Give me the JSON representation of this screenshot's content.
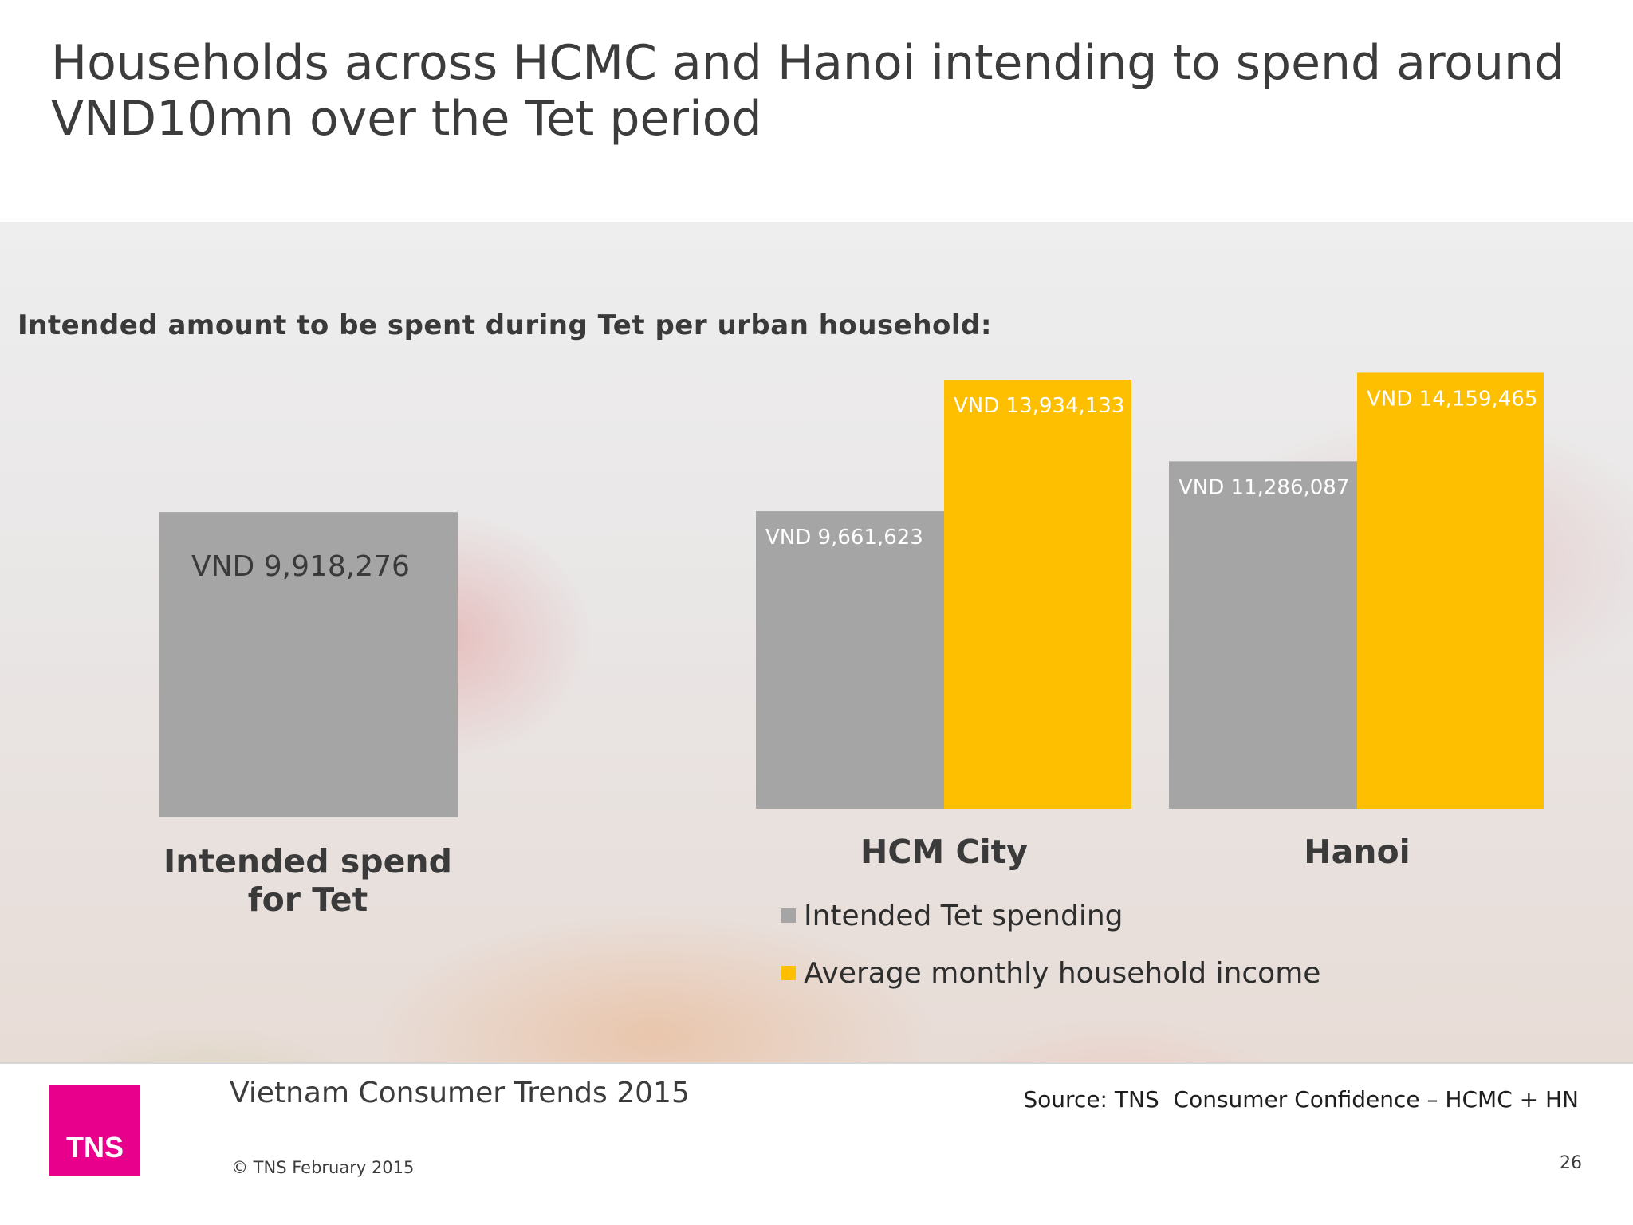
{
  "slide": {
    "title_line1": "Households across HCMC and Hanoi intending to spend around",
    "title_line2": "VND10mn over the Tet period",
    "subtitle": "Intended amount to be spent during Tet per urban household:"
  },
  "legend": {
    "items": [
      {
        "label": "Intended Tet spending",
        "color": "#a6a5a5"
      },
      {
        "label": "Average monthly household income",
        "color": "#fdbf00"
      }
    ]
  },
  "chart_data": {
    "type": "bar",
    "title": "Intended amount to be spent during Tet per urban household:",
    "colors": {
      "spend": "#a6a5a5",
      "income": "#fdbf00"
    },
    "groups": [
      {
        "category": "Intended spend for Tet",
        "category_lines": [
          "Intended spend",
          "for Tet"
        ],
        "bars": [
          {
            "series": "Intended Tet spending",
            "value": 9918276,
            "label": "VND 9,918,276"
          }
        ]
      },
      {
        "category": "HCM City",
        "category_lines": [
          "HCM City"
        ],
        "bars": [
          {
            "series": "Intended Tet spending",
            "value": 9661623,
            "label": "VND 9,661,623"
          },
          {
            "series": "Average monthly household income",
            "value": 13934133,
            "label": "VND 13,934,133"
          }
        ]
      },
      {
        "category": "Hanoi",
        "category_lines": [
          "Hanoi"
        ],
        "bars": [
          {
            "series": "Intended Tet spending",
            "value": 11286087,
            "label": "VND 11,286,087"
          },
          {
            "series": "Average monthly household income",
            "value": 14159465,
            "label": "VND 14,159,465"
          }
        ]
      }
    ]
  },
  "footer": {
    "logo_text": "TNS",
    "report_title": "Vietnam Consumer Trends 2015",
    "copyright": "© TNS February 2015",
    "source": "Source: TNS  Consumer Confidence – HCMC + HN",
    "page_number": "26"
  }
}
